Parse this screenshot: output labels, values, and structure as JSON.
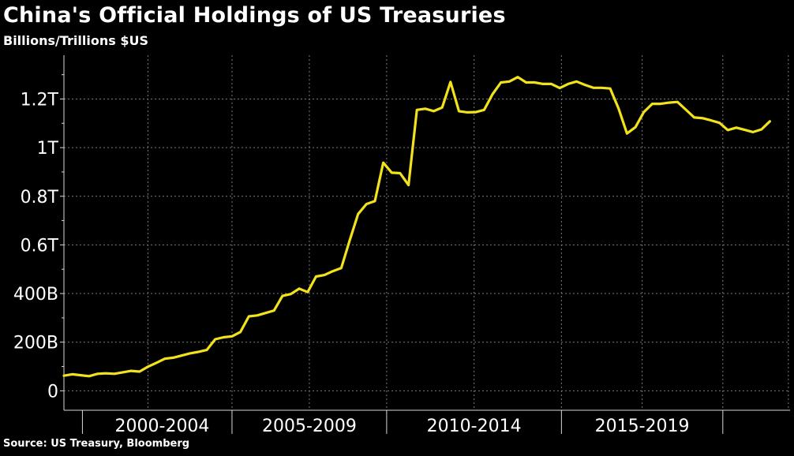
{
  "title": "China's Official Holdings of US Treasuries",
  "subtitle": "Billions/Trillions $US",
  "source": "Source: US Treasury, Bloomberg",
  "colors": {
    "background": "#000000",
    "line": "#f2e21c",
    "grid": "#7a7a7a",
    "axis": "#d8d8d8",
    "text": "#ffffff"
  },
  "chart_data": {
    "type": "line",
    "title": "China's Official Holdings of US Treasuries",
    "subtitle": "Billions/Trillions $US",
    "xlabel": "",
    "ylabel": "",
    "ylim": [
      -80,
      1380
    ],
    "xlim": [
      2000.0,
      2021.6
    ],
    "grid": true,
    "legend": "none",
    "y_ticks": [
      {
        "value": 0,
        "label": "0"
      },
      {
        "value": 200,
        "label": "200B"
      },
      {
        "value": 400,
        "label": "400B"
      },
      {
        "value": 600,
        "label": "0.6T"
      },
      {
        "value": 800,
        "label": "0.8T"
      },
      {
        "value": 1000,
        "label": "1T"
      },
      {
        "value": 1200,
        "label": "1.2T"
      }
    ],
    "x_groups": [
      {
        "label": "2000-2004",
        "start": 2000.0,
        "end": 2005.0
      },
      {
        "label": "2005-2009",
        "start": 2005.0,
        "end": 2009.6
      },
      {
        "label": "2010-2014",
        "start": 2009.6,
        "end": 2014.8
      },
      {
        "label": "2015-2019",
        "start": 2014.8,
        "end": 2019.6
      }
    ],
    "series": [
      {
        "values": [
          [
            2000.0,
            62
          ],
          [
            2000.25,
            68
          ],
          [
            2000.5,
            64
          ],
          [
            2000.75,
            60
          ],
          [
            2001.0,
            70
          ],
          [
            2001.25,
            72
          ],
          [
            2001.5,
            70
          ],
          [
            2001.75,
            76
          ],
          [
            2002.0,
            82
          ],
          [
            2002.25,
            79
          ],
          [
            2002.5,
            99
          ],
          [
            2002.75,
            115
          ],
          [
            2003.0,
            132
          ],
          [
            2003.25,
            136
          ],
          [
            2003.5,
            145
          ],
          [
            2003.75,
            154
          ],
          [
            2004.0,
            160
          ],
          [
            2004.25,
            168
          ],
          [
            2004.5,
            212
          ],
          [
            2004.75,
            220
          ],
          [
            2005.0,
            224
          ],
          [
            2005.25,
            242
          ],
          [
            2005.5,
            306
          ],
          [
            2005.75,
            310
          ],
          [
            2006.0,
            320
          ],
          [
            2006.25,
            330
          ],
          [
            2006.5,
            390
          ],
          [
            2006.75,
            398
          ],
          [
            2007.0,
            420
          ],
          [
            2007.25,
            406
          ],
          [
            2007.5,
            470
          ],
          [
            2007.75,
            476
          ],
          [
            2008.0,
            492
          ],
          [
            2008.25,
            505
          ],
          [
            2008.5,
            618
          ],
          [
            2008.75,
            727
          ],
          [
            2009.0,
            768
          ],
          [
            2009.25,
            780
          ],
          [
            2009.5,
            938
          ],
          [
            2009.75,
            897
          ],
          [
            2010.0,
            895
          ],
          [
            2010.25,
            846
          ],
          [
            2010.5,
            1155
          ],
          [
            2010.75,
            1160
          ],
          [
            2011.0,
            1150
          ],
          [
            2011.25,
            1165
          ],
          [
            2011.5,
            1270
          ],
          [
            2011.75,
            1150
          ],
          [
            2012.0,
            1145
          ],
          [
            2012.25,
            1146
          ],
          [
            2012.5,
            1155
          ],
          [
            2012.75,
            1220
          ],
          [
            2013.0,
            1268
          ],
          [
            2013.25,
            1272
          ],
          [
            2013.5,
            1290
          ],
          [
            2013.75,
            1268
          ],
          [
            2014.0,
            1268
          ],
          [
            2014.25,
            1262
          ],
          [
            2014.5,
            1262
          ],
          [
            2014.75,
            1245
          ],
          [
            2015.0,
            1262
          ],
          [
            2015.25,
            1272
          ],
          [
            2015.5,
            1258
          ],
          [
            2015.75,
            1246
          ],
          [
            2016.0,
            1246
          ],
          [
            2016.25,
            1243
          ],
          [
            2016.5,
            1160
          ],
          [
            2016.75,
            1058
          ],
          [
            2017.0,
            1084
          ],
          [
            2017.25,
            1146
          ],
          [
            2017.5,
            1180
          ],
          [
            2017.75,
            1180
          ],
          [
            2018.0,
            1185
          ],
          [
            2018.25,
            1188
          ],
          [
            2018.5,
            1156
          ],
          [
            2018.75,
            1124
          ],
          [
            2019.0,
            1121
          ],
          [
            2019.25,
            1112
          ],
          [
            2019.5,
            1102
          ],
          [
            2019.75,
            1072
          ],
          [
            2020.0,
            1082
          ],
          [
            2020.25,
            1073
          ],
          [
            2020.5,
            1064
          ],
          [
            2020.75,
            1075
          ],
          [
            2021.0,
            1108
          ]
        ]
      }
    ]
  }
}
